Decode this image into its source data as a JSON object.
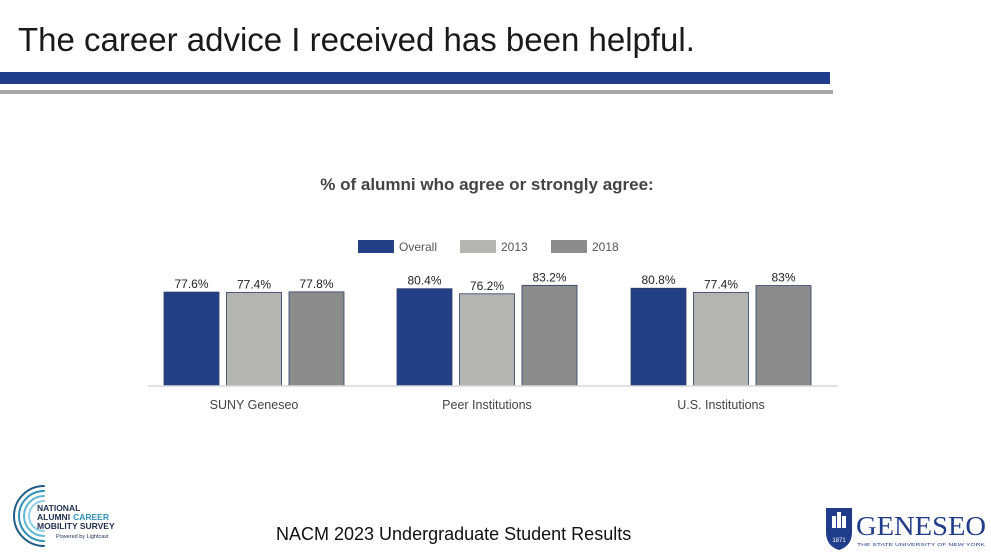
{
  "slide": {
    "title": "The career advice I received has been helpful.",
    "footer": "NACM 2023 Undergraduate Student Results"
  },
  "logos": {
    "nacm": {
      "line1": "NATIONAL",
      "line2a": "ALUMNI",
      "line2b": "CAREER",
      "line3": "MOBILITY SURVEY",
      "line4": "Powered by Lightcast"
    },
    "geneseo": {
      "name": "GENESEO",
      "tagline": "THE STATE UNIVERSITY OF NEW YORK",
      "seal_year": "1871"
    }
  },
  "colors": {
    "accent_blue": "#1f3d8a",
    "rule_gray": "#a8a8a8",
    "overall": "#233f86",
    "y2013": "#b4b4b0",
    "y2018": "#8c8c8c"
  },
  "chart_data": {
    "type": "bar",
    "title": "% of alumni who agree or strongly agree:",
    "categories": [
      "SUNY Geneseo",
      "Peer Institutions",
      "U.S. Institutions"
    ],
    "series": [
      {
        "name": "Overall",
        "values": [
          77.6,
          80.4,
          80.8
        ],
        "labels": [
          "77.6%",
          "80.4%",
          "80.8%"
        ],
        "color": "#233f86"
      },
      {
        "name": "2013",
        "values": [
          77.4,
          76.2,
          77.4
        ],
        "labels": [
          "77.4%",
          "76.2%",
          "77.4%"
        ],
        "color": "#b4b4b0"
      },
      {
        "name": "2018",
        "values": [
          77.8,
          83.2,
          83.0
        ],
        "labels": [
          "77.8%",
          "83.2%",
          "83%"
        ],
        "color": "#8c8c8c"
      }
    ],
    "legend_position": "top",
    "grid": false,
    "xlabel": "",
    "ylabel": ""
  }
}
